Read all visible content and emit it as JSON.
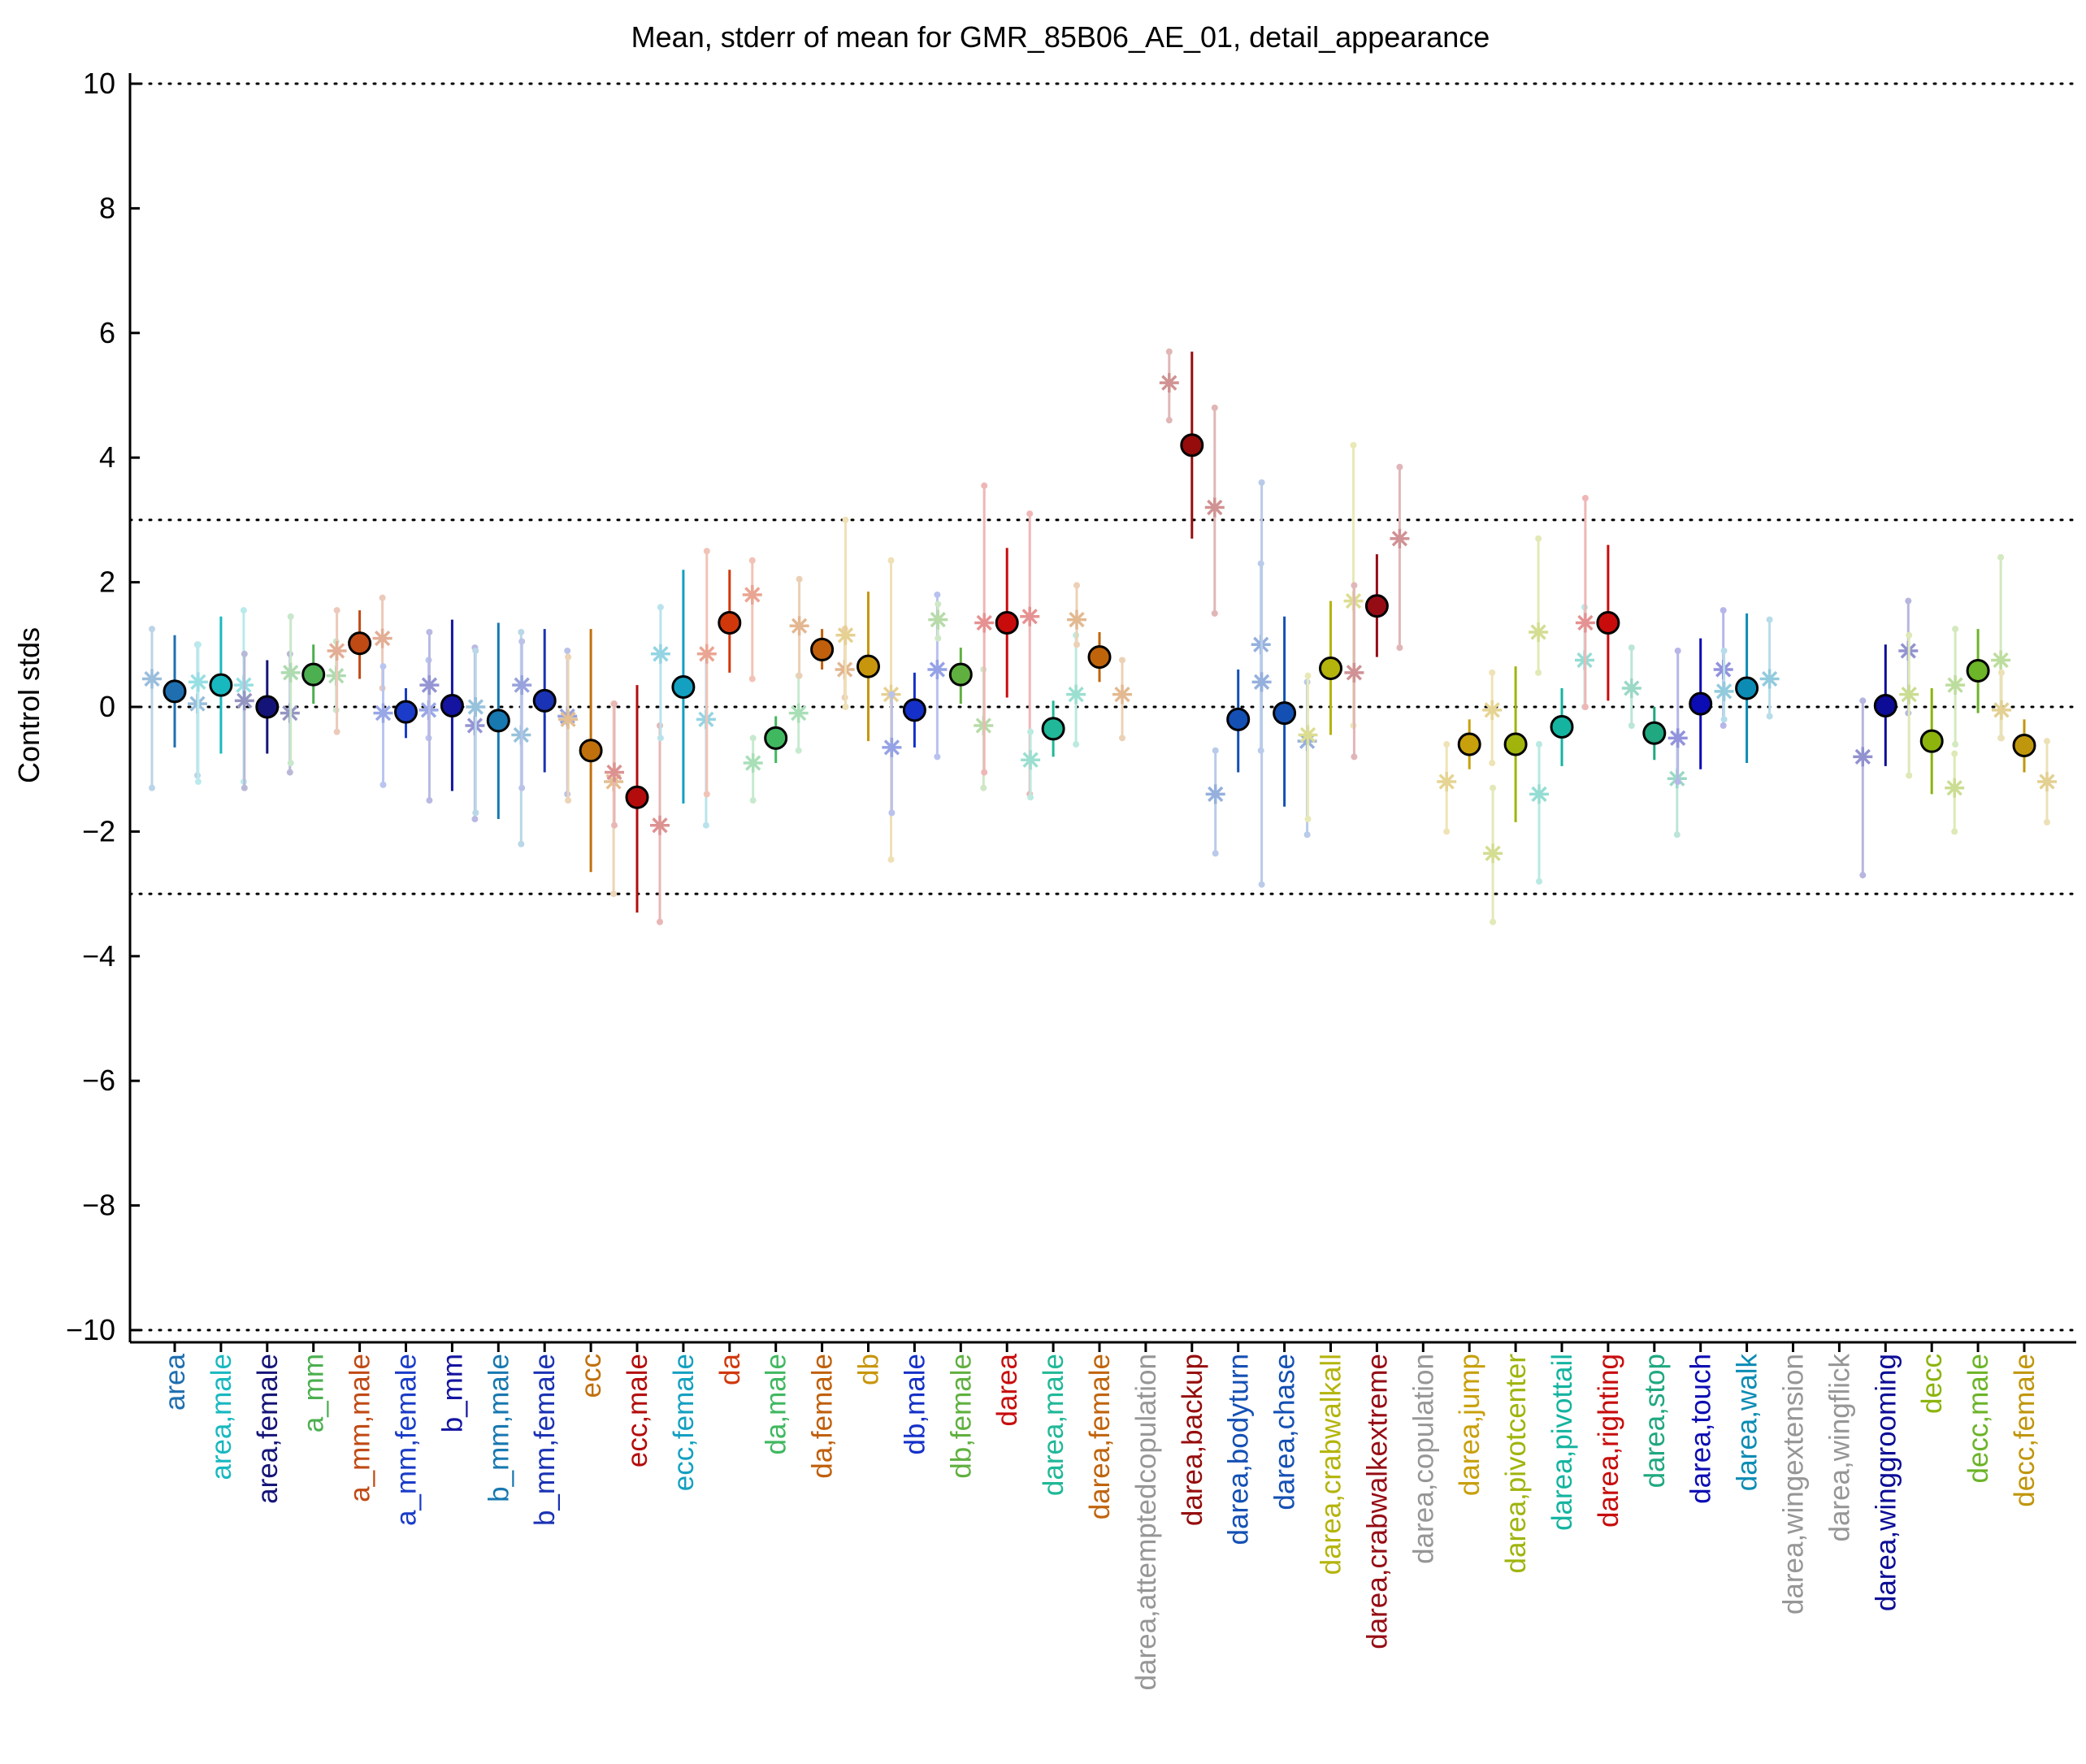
{
  "chart_data": {
    "type": "scatter",
    "title": "Mean, stderr of mean for GMR_85B06_AE_01, detail_appearance",
    "xlabel": "",
    "ylabel": "Control stds",
    "ylim": [
      -10.2,
      10.2
    ],
    "yticks": [
      10,
      8,
      6,
      4,
      2,
      0,
      -2,
      -4,
      -6,
      -8,
      -10
    ],
    "yticklabels": [
      "10",
      "8",
      "6",
      "4",
      "2",
      "0",
      "−2",
      "−4",
      "−6",
      "−8",
      "−10"
    ],
    "reference_lines": [
      10,
      3,
      0,
      -3,
      -10
    ],
    "grid": false,
    "legend": "none",
    "categories": [
      {
        "label": "area",
        "color": "#1f6fb0",
        "mean": 0.25,
        "lo": -0.65,
        "hi": 1.15,
        "pts": [
          [
            -0.25,
            0.45,
            -1.3,
            1.25
          ],
          [
            0.25,
            0.05,
            -1.1,
            1.0
          ]
        ]
      },
      {
        "label": "area,male",
        "color": "#18b8c0",
        "mean": 0.35,
        "lo": -0.75,
        "hi": 1.45,
        "pts": [
          [
            -0.25,
            0.4,
            -1.2,
            1.0
          ],
          [
            0.25,
            0.35,
            -1.2,
            1.55
          ]
        ]
      },
      {
        "label": "area,female",
        "color": "#141478",
        "mean": 0.0,
        "lo": -0.75,
        "hi": 0.75,
        "pts": [
          [
            -0.25,
            0.1,
            -1.3,
            0.85
          ],
          [
            0.25,
            -0.1,
            -1.05,
            0.85
          ]
        ]
      },
      {
        "label": "a_mm",
        "color": "#4caf50",
        "mean": 0.52,
        "lo": 0.05,
        "hi": 1.0,
        "pts": [
          [
            -0.25,
            0.55,
            -0.9,
            1.45
          ],
          [
            0.25,
            0.5,
            -0.05,
            1.05
          ]
        ]
      },
      {
        "label": "a_mm,male",
        "color": "#c04a14",
        "mean": 1.02,
        "lo": 0.45,
        "hi": 1.55,
        "pts": [
          [
            -0.25,
            0.9,
            -0.4,
            1.55
          ],
          [
            0.25,
            1.1,
            0.3,
            1.75
          ]
        ]
      },
      {
        "label": "a_mm,female",
        "color": "#1a3cc8",
        "mean": -0.08,
        "lo": -0.5,
        "hi": 0.3,
        "pts": [
          [
            -0.25,
            -0.1,
            -1.25,
            0.65
          ],
          [
            0.25,
            -0.05,
            -0.5,
            0.75
          ]
        ]
      },
      {
        "label": "b_mm",
        "color": "#1414a0",
        "mean": 0.02,
        "lo": -1.35,
        "hi": 1.4,
        "pts": [
          [
            -0.25,
            0.35,
            -1.5,
            1.2
          ],
          [
            0.25,
            -0.3,
            -1.8,
            0.95
          ]
        ]
      },
      {
        "label": "b_mm,male",
        "color": "#1878b0",
        "mean": -0.22,
        "lo": -1.8,
        "hi": 1.35,
        "pts": [
          [
            -0.25,
            0.0,
            -1.7,
            0.9
          ],
          [
            0.25,
            -0.45,
            -2.2,
            1.2
          ]
        ]
      },
      {
        "label": "b_mm,female",
        "color": "#1a32b4",
        "mean": 0.1,
        "lo": -1.05,
        "hi": 1.25,
        "pts": [
          [
            -0.25,
            0.35,
            -1.3,
            1.05
          ],
          [
            0.25,
            -0.15,
            -1.4,
            0.9
          ]
        ]
      },
      {
        "label": "ecc",
        "color": "#c0700c",
        "mean": -0.7,
        "lo": -2.65,
        "hi": 1.25,
        "pts": [
          [
            -0.25,
            -0.2,
            -1.5,
            0.8
          ],
          [
            0.25,
            -1.2,
            -3.0,
            0.05
          ]
        ]
      },
      {
        "label": "ecc,male",
        "color": "#b40c0c",
        "mean": -1.45,
        "lo": -3.3,
        "hi": 0.35,
        "pts": [
          [
            -0.25,
            -1.05,
            -1.9,
            0.05
          ],
          [
            0.25,
            -1.9,
            -3.45,
            -0.3
          ]
        ]
      },
      {
        "label": "ecc,female",
        "color": "#14a0c0",
        "mean": 0.32,
        "lo": -1.55,
        "hi": 2.2,
        "pts": [
          [
            -0.25,
            0.85,
            -0.5,
            1.6
          ],
          [
            0.25,
            -0.2,
            -1.9,
            0.85
          ]
        ]
      },
      {
        "label": "da",
        "color": "#d0380c",
        "mean": 1.35,
        "lo": 0.55,
        "hi": 2.2,
        "pts": [
          [
            -0.25,
            0.85,
            -1.4,
            2.5
          ],
          [
            0.25,
            1.8,
            0.45,
            2.35
          ]
        ]
      },
      {
        "label": "da,male",
        "color": "#40b860",
        "mean": -0.5,
        "lo": -0.9,
        "hi": -0.15,
        "pts": [
          [
            -0.25,
            -0.9,
            -1.5,
            -0.5
          ],
          [
            0.25,
            -0.1,
            -0.7,
            0.5
          ]
        ]
      },
      {
        "label": "da,female",
        "color": "#c0600c",
        "mean": 0.92,
        "lo": 0.6,
        "hi": 1.25,
        "pts": [
          [
            -0.25,
            1.3,
            0.5,
            2.05
          ],
          [
            0.25,
            0.6,
            0.15,
            1.25
          ]
        ]
      },
      {
        "label": "db",
        "color": "#c8960c",
        "mean": 0.65,
        "lo": -0.55,
        "hi": 1.85,
        "pts": [
          [
            -0.25,
            1.15,
            0.0,
            3.0
          ],
          [
            0.25,
            0.2,
            -2.45,
            2.35
          ]
        ]
      },
      {
        "label": "db,male",
        "color": "#1430c8",
        "mean": -0.05,
        "lo": -0.65,
        "hi": 0.55,
        "pts": [
          [
            -0.25,
            -0.65,
            -1.7,
            0.2
          ],
          [
            0.25,
            0.6,
            -0.8,
            1.8
          ]
        ]
      },
      {
        "label": "db,female",
        "color": "#60b040",
        "mean": 0.52,
        "lo": 0.05,
        "hi": 0.95,
        "pts": [
          [
            -0.25,
            1.4,
            1.1,
            1.65
          ],
          [
            0.25,
            -0.3,
            -1.3,
            0.6
          ]
        ]
      },
      {
        "label": "darea",
        "color": "#c80c0c",
        "mean": 1.35,
        "lo": 0.15,
        "hi": 2.55,
        "pts": [
          [
            -0.25,
            1.35,
            -1.05,
            3.55
          ],
          [
            0.25,
            1.45,
            -1.4,
            3.1
          ]
        ]
      },
      {
        "label": "darea,male",
        "color": "#20b898",
        "mean": -0.35,
        "lo": -0.8,
        "hi": 0.1,
        "pts": [
          [
            -0.25,
            -0.85,
            -1.45,
            -0.4
          ],
          [
            0.25,
            0.2,
            -0.6,
            1.15
          ]
        ]
      },
      {
        "label": "darea,female",
        "color": "#c0640c",
        "mean": 0.8,
        "lo": 0.4,
        "hi": 1.2,
        "pts": [
          [
            -0.25,
            1.4,
            1.0,
            1.95
          ],
          [
            0.25,
            0.2,
            -0.5,
            0.75
          ]
        ]
      },
      {
        "label": "darea,attemptedcopulation",
        "color": "#969696"
      },
      {
        "label": "darea,backup",
        "color": "#960c0c",
        "mean": 4.2,
        "lo": 2.7,
        "hi": 5.7,
        "pts": [
          [
            -0.25,
            5.2,
            4.6,
            5.7
          ],
          [
            0.25,
            3.2,
            1.5,
            4.8
          ]
        ]
      },
      {
        "label": "darea,bodyturn",
        "color": "#1450b4",
        "mean": -0.2,
        "lo": -1.05,
        "hi": 0.6,
        "pts": [
          [
            -0.25,
            -1.4,
            -2.35,
            -0.7
          ],
          [
            0.25,
            1.0,
            -0.7,
            2.3
          ]
        ]
      },
      {
        "label": "darea,chase",
        "color": "#1450b4",
        "mean": -0.1,
        "lo": -1.6,
        "hi": 1.45,
        "pts": [
          [
            -0.25,
            0.4,
            -2.85,
            3.6
          ],
          [
            0.25,
            -0.55,
            -2.05,
            0.4
          ]
        ]
      },
      {
        "label": "darea,crabwalkall",
        "color": "#b4b40c",
        "mean": 0.62,
        "lo": -0.45,
        "hi": 1.7,
        "pts": [
          [
            -0.25,
            -0.45,
            -1.8,
            0.5
          ],
          [
            0.25,
            1.7,
            -0.3,
            4.2
          ]
        ]
      },
      {
        "label": "darea,crabwalkextreme",
        "color": "#960c14",
        "mean": 1.62,
        "lo": 0.8,
        "hi": 2.45,
        "pts": [
          [
            -0.25,
            0.55,
            -0.8,
            1.95
          ],
          [
            0.25,
            2.7,
            0.95,
            3.85
          ]
        ]
      },
      {
        "label": "darea,copulation",
        "color": "#969696"
      },
      {
        "label": "darea,jump",
        "color": "#c8a00c",
        "mean": -0.6,
        "lo": -1.0,
        "hi": -0.2,
        "pts": [
          [
            -0.25,
            -1.2,
            -2.0,
            -0.6
          ],
          [
            0.25,
            -0.05,
            -0.9,
            0.55
          ]
        ]
      },
      {
        "label": "darea,pivotcenter",
        "color": "#a0b40c",
        "mean": -0.6,
        "lo": -1.85,
        "hi": 0.65,
        "pts": [
          [
            -0.25,
            -2.35,
            -3.45,
            -1.3
          ],
          [
            0.25,
            1.2,
            0.55,
            2.7
          ]
        ]
      },
      {
        "label": "darea,pivottail",
        "color": "#14b4a0",
        "mean": -0.32,
        "lo": -0.95,
        "hi": 0.3,
        "pts": [
          [
            -0.25,
            -1.4,
            -2.8,
            -0.6
          ],
          [
            0.25,
            0.75,
            0.0,
            1.6
          ]
        ]
      },
      {
        "label": "darea,righting",
        "color": "#c80c0c",
        "mean": 1.35,
        "lo": 0.1,
        "hi": 2.6,
        "pts": [
          [
            -0.25,
            1.35,
            0.0,
            3.35
          ]
        ]
      },
      {
        "label": "darea,stop",
        "color": "#20a880",
        "mean": -0.42,
        "lo": -0.85,
        "hi": 0.0,
        "pts": [
          [
            -0.25,
            0.3,
            -0.3,
            0.95
          ],
          [
            0.25,
            -1.15,
            -2.05,
            -0.45
          ]
        ]
      },
      {
        "label": "darea,touch",
        "color": "#0c0cb4",
        "mean": 0.05,
        "lo": -1.0,
        "hi": 1.1,
        "pts": [
          [
            -0.25,
            -0.5,
            -1.2,
            0.9
          ],
          [
            0.25,
            0.6,
            -0.3,
            1.55
          ]
        ]
      },
      {
        "label": "darea,walk",
        "color": "#0c8cb4",
        "mean": 0.3,
        "lo": -0.9,
        "hi": 1.5,
        "pts": [
          [
            -0.25,
            0.25,
            -0.2,
            0.9
          ],
          [
            0.25,
            0.45,
            -0.15,
            1.4
          ]
        ]
      },
      {
        "label": "darea,wingextension",
        "color": "#969696"
      },
      {
        "label": "darea,wingflick",
        "color": "#969696"
      },
      {
        "label": "darea,winggrooming",
        "color": "#0c0c96",
        "mean": 0.02,
        "lo": -0.95,
        "hi": 1.0,
        "pts": [
          [
            -0.25,
            -0.8,
            -2.7,
            0.1
          ],
          [
            0.25,
            0.9,
            -0.1,
            1.7
          ]
        ]
      },
      {
        "label": "decc",
        "color": "#8cb40c",
        "mean": -0.55,
        "lo": -1.4,
        "hi": 0.3,
        "pts": [
          [
            -0.25,
            0.2,
            -1.1,
            1.15
          ],
          [
            0.25,
            -1.3,
            -2.0,
            -0.75
          ]
        ]
      },
      {
        "label": "decc,male",
        "color": "#6cb428",
        "mean": 0.58,
        "lo": -0.1,
        "hi": 1.25,
        "pts": [
          [
            -0.25,
            0.35,
            -0.6,
            1.25
          ],
          [
            0.25,
            0.75,
            -0.5,
            2.4
          ]
        ]
      },
      {
        "label": "decc,female",
        "color": "#c0960c",
        "mean": -0.62,
        "lo": -1.05,
        "hi": -0.2,
        "pts": [
          [
            -0.25,
            -0.05,
            -0.5,
            0.55
          ],
          [
            0.25,
            -1.2,
            -1.85,
            -0.55
          ]
        ]
      }
    ]
  }
}
